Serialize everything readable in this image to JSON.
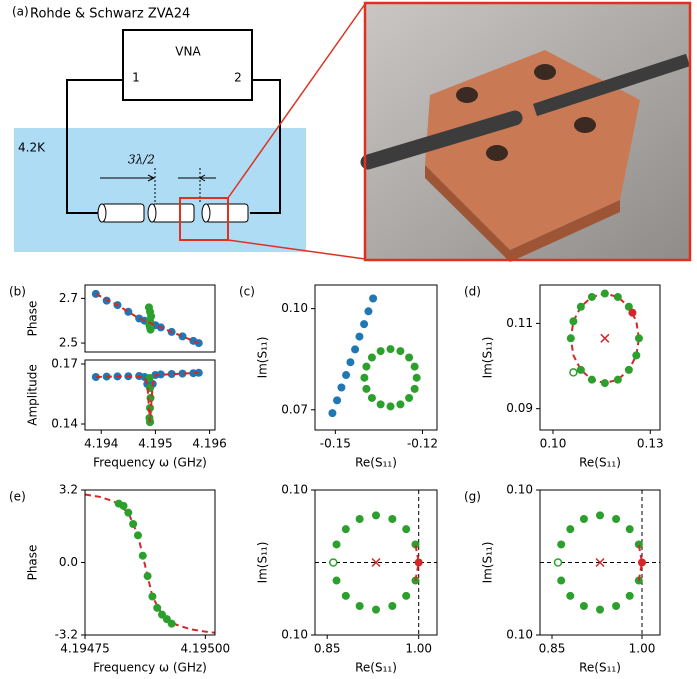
{
  "schematic": {
    "panel_label": "(a)",
    "instrument": "Rohde & Schwarz ZVA24",
    "vna": "VNA",
    "port1": "1",
    "port2": "2",
    "temperature": "4.2K",
    "length": "3λ/2"
  },
  "chart_data": [
    {
      "type": "scatter",
      "panel_label": "(b)",
      "ylabel": "Phase",
      "xlim": [
        4.1937,
        4.1961
      ],
      "ylim": [
        2.46,
        2.76
      ],
      "yticks": [
        2.5,
        2.7
      ],
      "series": [
        {
          "style": "dots",
          "color": "#1f77b4",
          "x": [
            4.1939,
            4.1941,
            4.1943,
            4.1945,
            4.1947,
            4.1948,
            4.1949,
            4.195,
            4.1951,
            4.1953,
            4.1955,
            4.1957,
            4.1958
          ],
          "y": [
            2.72,
            2.69,
            2.67,
            2.64,
            2.61,
            2.6,
            2.59,
            2.58,
            2.57,
            2.55,
            2.53,
            2.51,
            2.5
          ]
        },
        {
          "style": "dots",
          "color": "#2ca02c",
          "x": [
            4.19488,
            4.1949,
            4.19492,
            4.1949,
            4.19489,
            4.19491,
            4.1949
          ],
          "y": [
            2.66,
            2.64,
            2.62,
            2.6,
            2.58,
            2.56,
            2.57
          ]
        },
        {
          "style": "dashed",
          "color": "#d62728",
          "x": [
            4.1939,
            4.1943,
            4.1947,
            4.1949,
            4.1951,
            4.1955,
            4.1958
          ],
          "y": [
            2.72,
            2.67,
            2.61,
            2.59,
            2.57,
            2.53,
            2.5
          ]
        }
      ]
    },
    {
      "type": "scatter",
      "ylabel": "Amplitude",
      "xlabel": "Frequency ω (GHz)",
      "xlim": [
        4.1937,
        4.1961
      ],
      "ylim": [
        0.137,
        0.172
      ],
      "yticks": [
        0.14,
        0.17
      ],
      "xticks": [
        4.194,
        4.195,
        4.196
      ],
      "series": [
        {
          "style": "dots",
          "color": "#1f77b4",
          "x": [
            4.1939,
            4.1941,
            4.1943,
            4.1945,
            4.1947,
            4.1948,
            4.19485,
            4.1949,
            4.19495,
            4.195,
            4.1951,
            4.1953,
            4.1955,
            4.1957,
            4.1958
          ],
          "y": [
            0.1635,
            0.1637,
            0.1638,
            0.1639,
            0.164,
            0.1635,
            0.16,
            0.141,
            0.16,
            0.1645,
            0.1648,
            0.165,
            0.1652,
            0.1654,
            0.1656
          ]
        },
        {
          "style": "dots",
          "color": "#2ca02c",
          "x": [
            4.19489,
            4.1949,
            4.19491,
            4.1949,
            4.19489,
            4.1949
          ],
          "y": [
            0.163,
            0.158,
            0.153,
            0.148,
            0.143,
            0.141
          ]
        },
        {
          "style": "dashed",
          "color": "#d62728",
          "x": [
            4.1939,
            4.1945,
            4.1948,
            4.19485,
            4.1949,
            4.19495,
            4.195,
            4.1955,
            4.1958
          ],
          "y": [
            0.1635,
            0.1639,
            0.1635,
            0.16,
            0.141,
            0.16,
            0.1645,
            0.1652,
            0.1656
          ]
        }
      ]
    },
    {
      "type": "scatter",
      "panel_label": "(c)",
      "xlabel": "Re(S₁₁)",
      "ylabel": "Im(S₁₁)",
      "xlim": [
        -0.157,
        -0.115
      ],
      "ylim": [
        0.064,
        0.107
      ],
      "xticks": [
        -0.15,
        -0.12
      ],
      "yticks": [
        0.07,
        {
          "value": 0.1,
          "label": "0.10"
        }
      ],
      "series": [
        {
          "style": "dots",
          "color": "#1f77b4",
          "x": [
            -0.151,
            -0.1494,
            -0.1479,
            -0.1463,
            -0.1448,
            -0.1432,
            -0.1417,
            -0.1401,
            -0.1386,
            -0.137
          ],
          "y": [
            0.069,
            0.0728,
            0.0766,
            0.0803,
            0.0841,
            0.0879,
            0.0917,
            0.0954,
            0.0992,
            0.103
          ]
        },
        {
          "style": "dots",
          "color": "#2ca02c",
          "x": [
            -0.122,
            -0.1227,
            -0.1246,
            -0.1276,
            -0.131,
            -0.1344,
            -0.1374,
            -0.1393,
            -0.14,
            -0.1393,
            -0.1374,
            -0.1344,
            -0.131,
            -0.1276,
            -0.1246,
            -0.1227
          ],
          "y": [
            0.0795,
            0.0828,
            0.0855,
            0.0874,
            0.088,
            0.0874,
            0.0855,
            0.0828,
            0.0795,
            0.0762,
            0.0735,
            0.0716,
            0.071,
            0.0716,
            0.0735,
            0.0762
          ]
        }
      ]
    },
    {
      "type": "scatter",
      "panel_label": "(d)",
      "xlabel": "Re(S₁₁)",
      "ylabel": "Im(S₁₁)",
      "xlim": [
        0.096,
        0.133
      ],
      "ylim": [
        0.085,
        0.119
      ],
      "xticks": [
        {
          "value": 0.1,
          "label": "0.10"
        },
        0.13
      ],
      "yticks": [
        0.09,
        0.11
      ],
      "series": [
        {
          "style": "dashed",
          "color": "#d62728",
          "x": [
            0.1265,
            0.1257,
            0.1234,
            0.12,
            0.116,
            0.112,
            0.1086,
            0.1063,
            0.1055,
            0.1063,
            0.1086,
            0.112,
            0.116,
            0.12,
            0.1234,
            0.1257,
            0.1265
          ],
          "y": [
            0.1065,
            0.1105,
            0.1139,
            0.1162,
            0.117,
            0.1162,
            0.1139,
            0.1105,
            0.1065,
            0.1025,
            0.0991,
            0.0968,
            0.096,
            0.0968,
            0.0991,
            0.1025,
            0.1065
          ]
        },
        {
          "style": "dots",
          "color": "#2ca02c",
          "x": [
            0.1265,
            0.1234,
            0.12,
            0.116,
            0.112,
            0.1086,
            0.1063,
            0.1055,
            0.1086,
            0.112,
            0.116,
            0.12,
            0.1234,
            0.1257
          ],
          "y": [
            0.1065,
            0.1139,
            0.1162,
            0.117,
            0.1162,
            0.1139,
            0.1105,
            0.1065,
            0.0991,
            0.0968,
            0.096,
            0.0968,
            0.0991,
            0.1025
          ]
        },
        {
          "style": "open",
          "color": "#2ca02c",
          "x": [
            0.1063
          ],
          "y": [
            0.0985
          ]
        },
        {
          "style": "dots",
          "color": "#d62728",
          "x": [
            0.1245
          ],
          "y": [
            0.1125
          ]
        },
        {
          "style": "cross",
          "color": "#d62728",
          "x": [
            0.116
          ],
          "y": [
            0.1065
          ]
        }
      ]
    },
    {
      "type": "scatter",
      "panel_label": "(e)",
      "xlabel": "Frequency ω (GHz)",
      "ylabel": "Phase",
      "xlim": [
        4.19475,
        4.19502
      ],
      "ylim": [
        -3.2,
        3.2
      ],
      "xticks": [
        4.19475,
        {
          "value": 4.195,
          "label": "4.19500"
        }
      ],
      "yticks": [
        -3.2,
        {
          "value": 0,
          "label": "0.0"
        },
        3.2
      ],
      "series": [
        {
          "style": "dashed",
          "color": "#d62728",
          "x": [
            4.19475,
            4.19478,
            4.19481,
            4.19484,
            4.19486,
            4.19487,
            4.19488,
            4.19489,
            4.19491,
            4.19494,
            4.19497,
            4.195,
            4.19502
          ],
          "y": [
            3.0,
            2.9,
            2.7,
            2.2,
            1.2,
            0.3,
            -0.6,
            -1.5,
            -2.3,
            -2.75,
            -2.95,
            -3.05,
            -3.1
          ]
        },
        {
          "style": "dots",
          "color": "#2ca02c",
          "x": [
            4.19482,
            4.19483,
            4.19484,
            4.19485,
            4.19486,
            4.19487,
            4.19488,
            4.19489,
            4.1949,
            4.19491,
            4.19492,
            4.19493
          ],
          "y": [
            2.6,
            2.5,
            2.2,
            1.7,
            1.2,
            0.3,
            -0.6,
            -1.5,
            -2.0,
            -2.3,
            -2.5,
            -2.7
          ]
        }
      ]
    },
    {
      "type": "scatter",
      "xlabel": "Re(S₁₁)",
      "ylabel": "Im(S₁₁)",
      "vline": 1,
      "hline": 0,
      "xlim": [
        0.83,
        1.03
      ],
      "ylim": [
        -0.1,
        0.1
      ],
      "xticks": [
        0.85,
        {
          "value": 1,
          "label": "1.00"
        }
      ],
      "yticks": [
        {
          "value": -0.1,
          "label": "0.10"
        },
        {
          "value": 0.1,
          "label": "0.10"
        }
      ],
      "series": [
        {
          "style": "dots",
          "color": "#2ca02c",
          "x": [
            0.9947,
            0.9795,
            0.9568,
            0.93,
            0.9032,
            0.8805,
            0.8653,
            0.8653,
            0.8805,
            0.9032,
            0.93,
            0.9568,
            0.9795,
            0.9947
          ],
          "y": [
            0.0249,
            0.046,
            0.06,
            0.065,
            0.06,
            0.046,
            0.0249,
            -0.0249,
            -0.046,
            -0.06,
            -0.065,
            -0.06,
            -0.046,
            -0.0249
          ]
        },
        {
          "style": "dashed",
          "color": "#d62728",
          "x": [
            0.9947,
            1,
            0.9947
          ],
          "y": [
            -0.0249,
            0,
            0.0249
          ]
        },
        {
          "style": "open",
          "color": "#2ca02c",
          "x": [
            0.86
          ],
          "y": [
            0
          ]
        },
        {
          "style": "dots",
          "color": "#d62728",
          "x": [
            1
          ],
          "y": [
            0
          ]
        },
        {
          "style": "cross",
          "color": "#d62728",
          "x": [
            0.93
          ],
          "y": [
            0
          ]
        }
      ]
    },
    {
      "type": "scatter",
      "panel_label": "(g)",
      "xlabel": "Re(S₁₁)",
      "ylabel": "Im(S₁₁)",
      "vline": 1,
      "hline": 0,
      "xlim": [
        0.83,
        1.03
      ],
      "ylim": [
        -0.1,
        0.1
      ],
      "xticks": [
        0.85,
        {
          "value": 1,
          "label": "1.00"
        }
      ],
      "yticks": [
        {
          "value": -0.1,
          "label": "0.10"
        },
        {
          "value": 0.1,
          "label": "0.10"
        }
      ],
      "series": [
        {
          "style": "dots",
          "color": "#2ca02c",
          "x": [
            0.9947,
            0.9795,
            0.9568,
            0.93,
            0.9032,
            0.8805,
            0.8653,
            0.8653,
            0.8805,
            0.9032,
            0.93,
            0.9568,
            0.9795,
            0.9947
          ],
          "y": [
            0.0249,
            0.046,
            0.06,
            0.065,
            0.06,
            0.046,
            0.0249,
            -0.0249,
            -0.046,
            -0.06,
            -0.065,
            -0.06,
            -0.046,
            -0.0249
          ]
        },
        {
          "style": "dashed",
          "color": "#d62728",
          "x": [
            0.9947,
            1,
            0.9947
          ],
          "y": [
            -0.0249,
            0,
            0.0249
          ]
        },
        {
          "style": "open",
          "color": "#2ca02c",
          "x": [
            0.86
          ],
          "y": [
            0
          ]
        },
        {
          "style": "dots",
          "color": "#d62728",
          "x": [
            1
          ],
          "y": [
            0
          ]
        },
        {
          "style": "cross",
          "color": "#d62728",
          "x": [
            0.93
          ],
          "y": [
            0
          ]
        }
      ]
    }
  ]
}
